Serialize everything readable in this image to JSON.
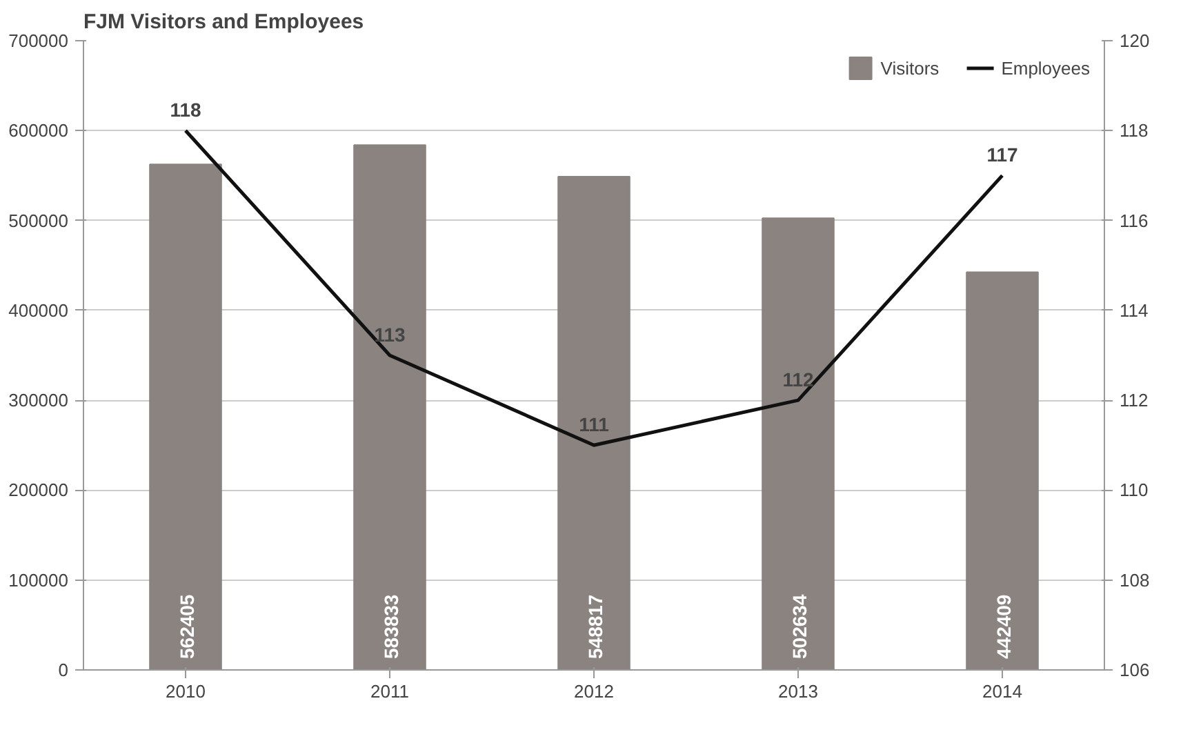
{
  "chart_data": {
    "type": "bar",
    "title": "FJM Visitors and Employees",
    "categories": [
      "2010",
      "2011",
      "2012",
      "2013",
      "2014"
    ],
    "series": [
      {
        "name": "Visitors",
        "color": "#8a8380",
        "values": [
          562405,
          583833,
          548817,
          502634,
          442409
        ]
      },
      {
        "name": "Employees",
        "type": "line",
        "axis": "y2",
        "color": "#111111",
        "values": [
          118,
          113,
          111,
          112,
          117
        ]
      }
    ],
    "ylim": [
      0,
      700000
    ],
    "yticks": [
      0,
      100000,
      200000,
      300000,
      400000,
      500000,
      600000,
      700000
    ],
    "y2lim": [
      106,
      120
    ],
    "y2ticks": [
      106,
      108,
      110,
      112,
      114,
      116,
      118,
      120
    ],
    "data_labels": true,
    "grid": "y",
    "legend": "top right",
    "marker": "none",
    "line_style": "solid"
  }
}
